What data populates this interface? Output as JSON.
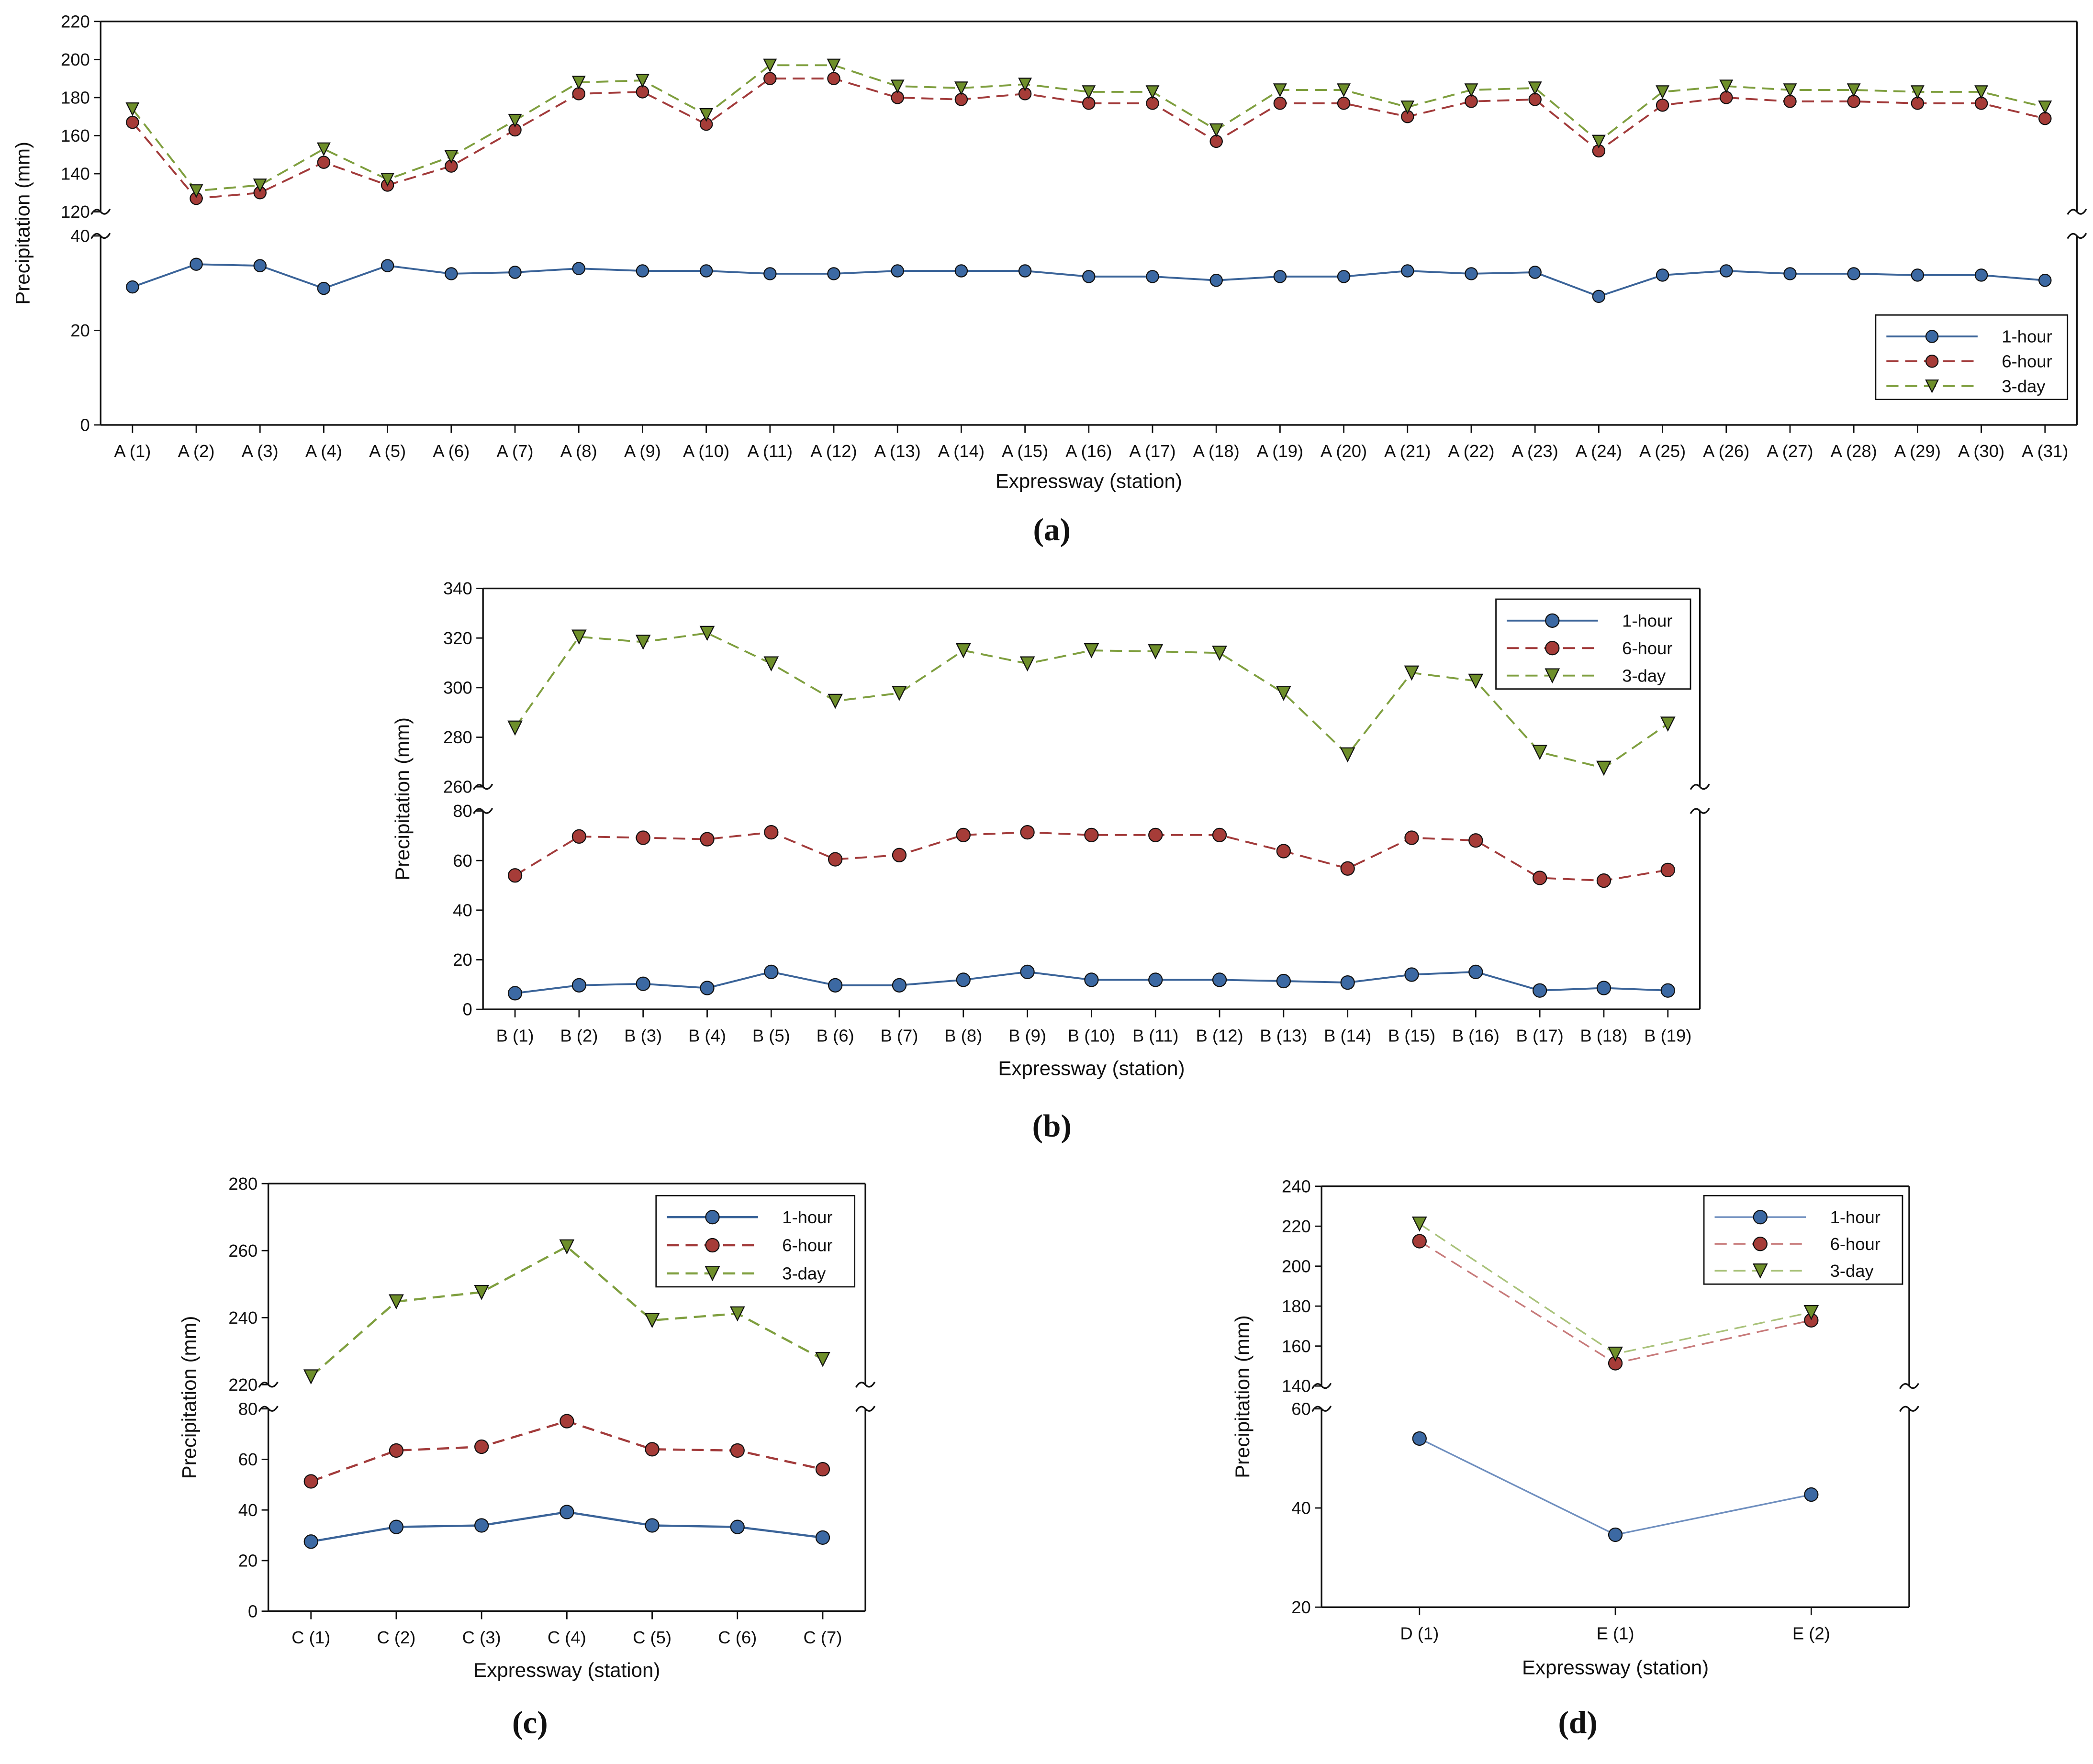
{
  "chart_data": [
    {
      "type": "line",
      "panel_label": "(a)",
      "xlabel": "Expressway (station)",
      "ylabel": "Precipitation (mm)",
      "categories": [
        "A (1)",
        "A (2)",
        "A (3)",
        "A (4)",
        "A (5)",
        "A (6)",
        "A (7)",
        "A (8)",
        "A (9)",
        "A (10)",
        "A (11)",
        "A (12)",
        "A (13)",
        "A (14)",
        "A (15)",
        "A (16)",
        "A (17)",
        "A (18)",
        "A (19)",
        "A (20)",
        "A (21)",
        "A (22)",
        "A (23)",
        "A (24)",
        "A (25)",
        "A (26)",
        "A (27)",
        "A (28)",
        "A (29)",
        "A (30)",
        "A (31)"
      ],
      "y_break": {
        "lower_range": [
          0,
          40
        ],
        "upper_range": [
          120,
          220
        ]
      },
      "lower_ticks": [
        "0",
        "20",
        "40"
      ],
      "upper_ticks": [
        "120",
        "140",
        "160",
        "180",
        "200",
        "220"
      ],
      "legend_position": "bottom-right",
      "series": [
        {
          "name": "1-hour",
          "color": "#3b6499",
          "values": [
            29.2,
            34,
            33.7,
            28.9,
            33.7,
            32,
            32.3,
            33.1,
            32.6,
            32.6,
            32,
            32,
            32.6,
            32.6,
            32.6,
            31.4,
            31.4,
            30.6,
            31.4,
            31.4,
            32.6,
            32,
            32.3,
            27.2,
            31.7,
            32.6,
            32,
            32,
            31.7,
            31.7,
            30.6
          ]
        },
        {
          "name": "6-hour",
          "color": "#a23b3b",
          "values": [
            167,
            127,
            130,
            146,
            134,
            144,
            163,
            182,
            183,
            166,
            190,
            190,
            180,
            179,
            182,
            177,
            177,
            157,
            177,
            177,
            170,
            178,
            179,
            152,
            176,
            180,
            178,
            178,
            177,
            177,
            169
          ]
        },
        {
          "name": "3-day",
          "color": "#7f9f3f",
          "values": [
            174,
            131,
            134,
            153,
            137,
            149,
            168,
            188,
            189,
            171,
            197,
            197,
            186,
            185,
            187,
            183,
            183,
            163,
            184,
            184,
            175,
            184,
            185,
            157,
            183,
            186,
            184,
            184,
            183,
            183,
            175
          ]
        }
      ]
    },
    {
      "type": "line",
      "panel_label": "(b)",
      "xlabel": "Expressway (station)",
      "ylabel": "Precipitation (mm)",
      "categories": [
        "B (1)",
        "B (2)",
        "B (3)",
        "B (4)",
        "B (5)",
        "B (6)",
        "B (7)",
        "B (8)",
        "B (9)",
        "B (10)",
        "B (11)",
        "B (12)",
        "B (13)",
        "B (14)",
        "B (15)",
        "B (16)",
        "B (17)",
        "B (18)",
        "B (19)"
      ],
      "y_break": {
        "lower_range": [
          0,
          80
        ],
        "upper_range": [
          260,
          340
        ]
      },
      "lower_ticks": [
        "0",
        "20",
        "40",
        "60",
        "80"
      ],
      "upper_ticks": [
        "260",
        "280",
        "300",
        "320",
        "340"
      ],
      "legend_position": "top-right",
      "series": [
        {
          "name": "1-hour",
          "color": "#3b6499",
          "values": [
            6.5,
            9.7,
            10.3,
            8.6,
            15.1,
            9.7,
            9.7,
            11.9,
            15.1,
            11.9,
            11.9,
            11.9,
            11.4,
            10.8,
            14,
            15.1,
            7.6,
            8.6,
            7.6
          ]
        },
        {
          "name": "6-hour",
          "color": "#a23b3b",
          "values": [
            54,
            69.7,
            69.2,
            68.6,
            71.4,
            60.5,
            62.2,
            70.3,
            71.4,
            70.3,
            70.3,
            70.3,
            63.8,
            56.8,
            69.2,
            68.1,
            53,
            51.9,
            56.2
          ]
        },
        {
          "name": "3-day",
          "color": "#7f9f3f",
          "values": [
            283.8,
            320.5,
            318.4,
            322,
            309.7,
            294.6,
            297.8,
            315,
            309.7,
            315,
            314.6,
            314,
            297.8,
            273,
            306,
            302.7,
            274,
            267.6,
            285.4
          ]
        }
      ]
    },
    {
      "type": "line",
      "panel_label": "(c)",
      "xlabel": "Expressway (station)",
      "ylabel": "Precipitation (mm)",
      "categories": [
        "C (1)",
        "C (2)",
        "C (3)",
        "C (4)",
        "C (5)",
        "C (6)",
        "C (7)"
      ],
      "y_break": {
        "lower_range": [
          0,
          80
        ],
        "upper_range": [
          220,
          280
        ]
      },
      "lower_ticks": [
        "0",
        "20",
        "40",
        "60",
        "80"
      ],
      "upper_ticks": [
        "220",
        "240",
        "260",
        "280"
      ],
      "legend_position": "top-right",
      "series": [
        {
          "name": "1-hour",
          "color": "#3b6499",
          "values": [
            27.5,
            33.3,
            33.9,
            39.2,
            33.9,
            33.3,
            29.1
          ]
        },
        {
          "name": "6-hour",
          "color": "#a23b3b",
          "values": [
            51.3,
            63.5,
            65,
            75.1,
            64,
            63.5,
            56.1
          ]
        },
        {
          "name": "3-day",
          "color": "#7f9f3f",
          "values": [
            222.4,
            244.8,
            247.6,
            261.2,
            239.2,
            241.2,
            227.6
          ]
        }
      ]
    },
    {
      "type": "line",
      "panel_label": "(d)",
      "xlabel": "Expressway (station)",
      "ylabel": "Precipitation (mm)",
      "categories": [
        "D (1)",
        "E (1)",
        "E (2)"
      ],
      "y_break": {
        "lower_range": [
          20,
          60
        ],
        "upper_range": [
          140,
          240
        ]
      },
      "lower_ticks": [
        "20",
        "40",
        "60"
      ],
      "upper_ticks": [
        "140",
        "160",
        "180",
        "200",
        "220",
        "240"
      ],
      "legend_position": "top-right",
      "series": [
        {
          "name": "1-hour",
          "color": "#6f8fbf",
          "values": [
            54,
            34.6,
            42.7
          ]
        },
        {
          "name": "6-hour",
          "color": "#c77a7a",
          "values": [
            212.5,
            151.4,
            172.9
          ]
        },
        {
          "name": "3-day",
          "color": "#a9c27a",
          "values": [
            221.2,
            156.1,
            176.9
          ]
        }
      ]
    }
  ]
}
